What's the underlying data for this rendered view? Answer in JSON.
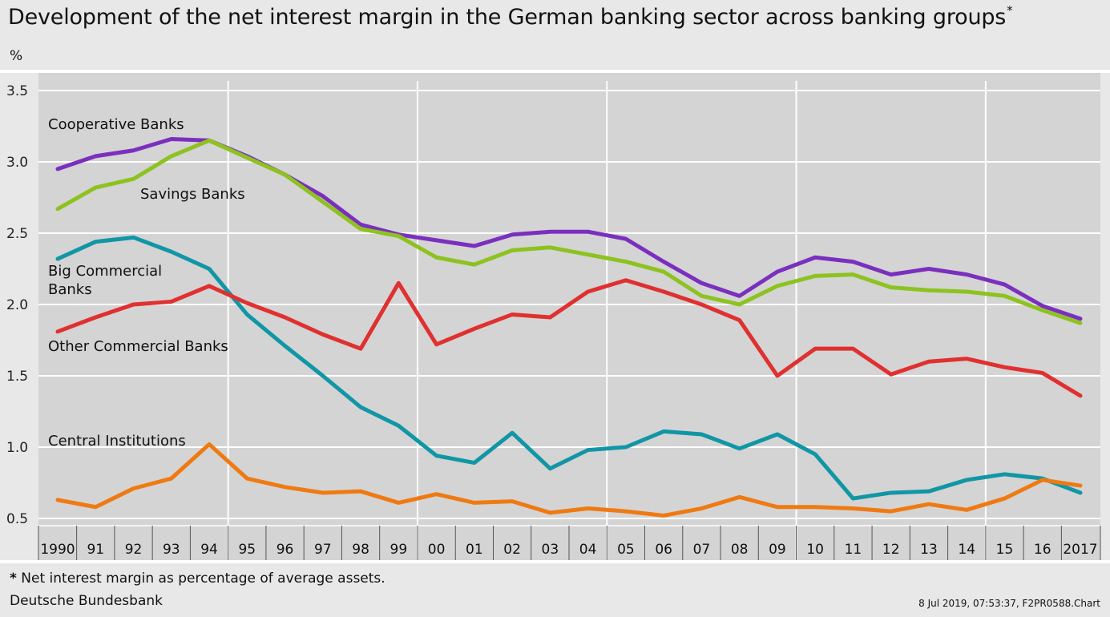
{
  "title": "Development of the net interest margin in the German banking sector across banking groups",
  "title_marker": "*",
  "unit": "%",
  "footnote_marker": "*",
  "footnote_text": "Net interest margin as percentage of average assets.",
  "source": "Deutsche Bundesbank",
  "stamp": "8 Jul 2019, 07:53:37, F2PR0588.Chart",
  "chart_data": {
    "type": "line",
    "categories": [
      "1990",
      "91",
      "92",
      "93",
      "94",
      "95",
      "96",
      "97",
      "98",
      "99",
      "00",
      "01",
      "02",
      "03",
      "04",
      "05",
      "06",
      "07",
      "08",
      "09",
      "10",
      "11",
      "12",
      "13",
      "14",
      "15",
      "16",
      "2017"
    ],
    "ylim": [
      0.5,
      3.5
    ],
    "yticks": [
      "0.5",
      "1.0",
      "1.5",
      "2.0",
      "2.5",
      "3.0",
      "3.5"
    ],
    "grid": true,
    "series": [
      {
        "name": "Cooperative Banks",
        "color": "#7b2fbe",
        "values": [
          2.95,
          3.04,
          3.08,
          3.16,
          3.15,
          3.04,
          2.91,
          2.76,
          2.56,
          2.49,
          2.45,
          2.41,
          2.49,
          2.51,
          2.51,
          2.46,
          2.3,
          2.15,
          2.06,
          2.23,
          2.33,
          2.3,
          2.21,
          2.25,
          2.21,
          2.14,
          1.99,
          1.9
        ]
      },
      {
        "name": "Savings Banks",
        "color": "#8dc21f",
        "values": [
          2.67,
          2.82,
          2.88,
          3.04,
          3.15,
          3.03,
          2.91,
          2.72,
          2.53,
          2.48,
          2.33,
          2.28,
          2.38,
          2.4,
          2.35,
          2.3,
          2.23,
          2.06,
          2.0,
          2.13,
          2.2,
          2.21,
          2.12,
          2.1,
          2.09,
          2.06,
          1.96,
          1.87
        ]
      },
      {
        "name": "Big Commercial Banks",
        "color": "#1196a6",
        "values": [
          2.32,
          2.44,
          2.47,
          2.37,
          2.25,
          1.93,
          1.71,
          1.5,
          1.28,
          1.15,
          0.94,
          0.89,
          1.1,
          0.85,
          0.98,
          1.0,
          1.11,
          1.09,
          0.99,
          1.09,
          0.95,
          0.64,
          0.68,
          0.69,
          0.77,
          0.81,
          0.78,
          0.68
        ]
      },
      {
        "name": "Other Commercial Banks",
        "color": "#e03030",
        "values": [
          1.81,
          1.91,
          2.0,
          2.02,
          2.13,
          2.01,
          1.91,
          1.79,
          1.69,
          2.15,
          1.72,
          1.83,
          1.93,
          1.91,
          2.09,
          2.17,
          2.09,
          2.0,
          1.89,
          1.5,
          1.69,
          1.69,
          1.51,
          1.6,
          1.62,
          1.56,
          1.52,
          1.36
        ]
      },
      {
        "name": "Central Institutions",
        "color": "#ef7a12",
        "values": [
          0.63,
          0.58,
          0.71,
          0.78,
          1.02,
          0.78,
          0.72,
          0.68,
          0.69,
          0.61,
          0.67,
          0.61,
          0.62,
          0.54,
          0.57,
          0.55,
          0.52,
          0.57,
          0.65,
          0.58,
          0.58,
          0.57,
          0.55,
          0.6,
          0.56,
          0.64,
          0.77,
          0.73
        ]
      }
    ],
    "labels": [
      {
        "text": "Cooperative Banks",
        "series": 0,
        "lines": [
          "Cooperative Banks"
        ]
      },
      {
        "text": "Savings Banks",
        "series": 1,
        "lines": [
          "Savings Banks"
        ]
      },
      {
        "text": "Big Commercial Banks",
        "series": 2,
        "lines": [
          "Big Commercial",
          "Banks"
        ]
      },
      {
        "text": "Other Commercial Banks",
        "series": 3,
        "lines": [
          "Other Commercial Banks"
        ]
      },
      {
        "text": "Central Institutions",
        "series": 4,
        "lines": [
          "Central Institutions"
        ]
      }
    ],
    "vertical_separators_after": [
      "94",
      "99",
      "04",
      "09",
      "14"
    ]
  }
}
